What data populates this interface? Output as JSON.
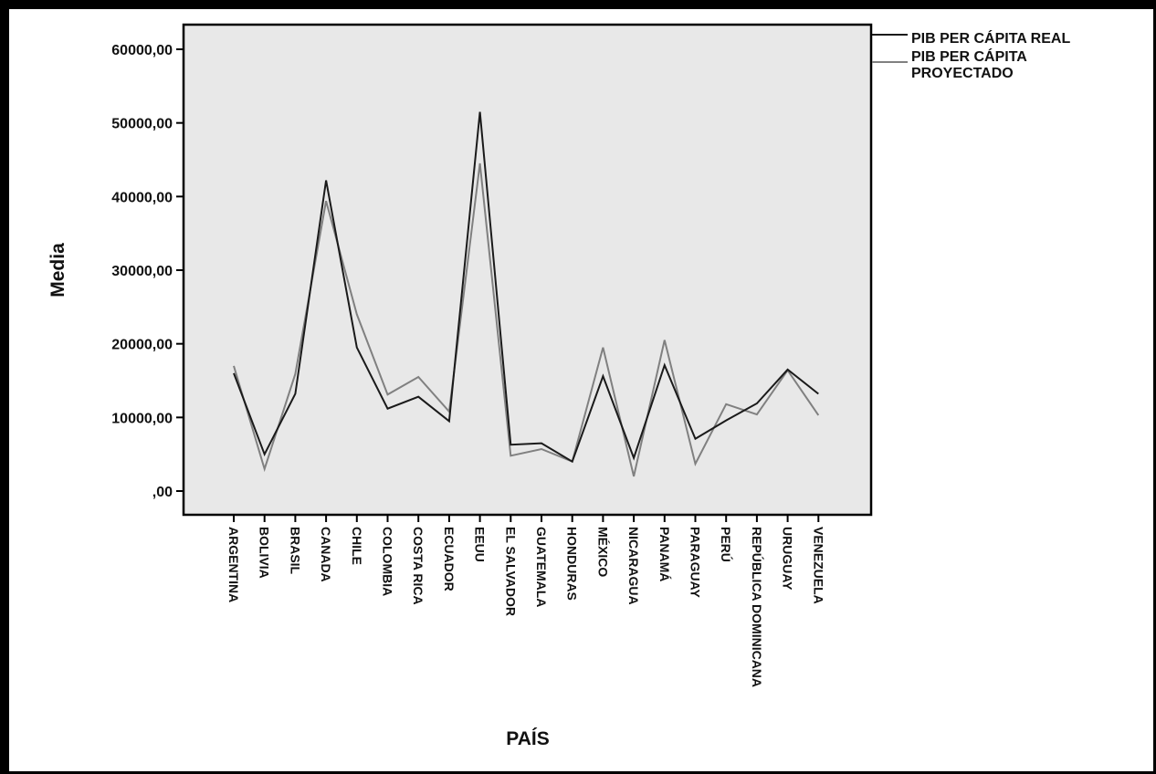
{
  "chart_data": {
    "type": "line",
    "title": "",
    "xlabel": "PAÍS",
    "ylabel": "Media",
    "ylim": [
      -3000,
      63000
    ],
    "yticks": [
      0,
      10000,
      20000,
      30000,
      40000,
      50000,
      60000
    ],
    "ytick_labels": [
      ",00",
      "10000,00",
      "20000,00",
      "30000,00",
      "40000,00",
      "50000,00",
      "60000,00"
    ],
    "grid": false,
    "legend_position": "top-right, outside plot",
    "categories": [
      "ARGENTINA",
      "BOLIVIA",
      "BRASIL",
      "CANADA",
      "CHILE",
      "COLOMBIA",
      "COSTA RICA",
      "ECUADOR",
      "EEUU",
      "EL SALVADOR",
      "GUATEMALA",
      "HONDURAS",
      "MÉXICO",
      "NICARAGUA",
      "PANAMÁ",
      "PARAGUAY",
      "PERÚ",
      "REPÚBLICA DOMINICANA",
      "URUGUAY",
      "VENEZUELA"
    ],
    "series": [
      {
        "name": "PIB PER CÁPITA REAL",
        "color": "#1a1a1a",
        "values": [
          16000,
          5000,
          13200,
          42200,
          19500,
          11200,
          12800,
          9500,
          51500,
          6300,
          6500,
          4000,
          15600,
          4500,
          17100,
          7100,
          9600,
          11900,
          16500,
          13200
        ]
      },
      {
        "name": "PIB PER CÁPITA PROYECTADO",
        "color": "#808080",
        "values": [
          17000,
          3000,
          15900,
          39400,
          24000,
          13100,
          15500,
          10800,
          44500,
          4800,
          5700,
          4000,
          19500,
          2000,
          20500,
          3700,
          11800,
          10400,
          16400,
          10300
        ]
      }
    ],
    "legend": [
      "PIB PER CÁPITA REAL",
      "PIB PER CÁPITA PROYECTADO"
    ],
    "legend_line2_text": "PROYECTADO",
    "legend_line1_text": "PIB PER CÁPITA"
  },
  "colors": {
    "plot_background": "#e8e8e8",
    "frame": "#000000"
  }
}
